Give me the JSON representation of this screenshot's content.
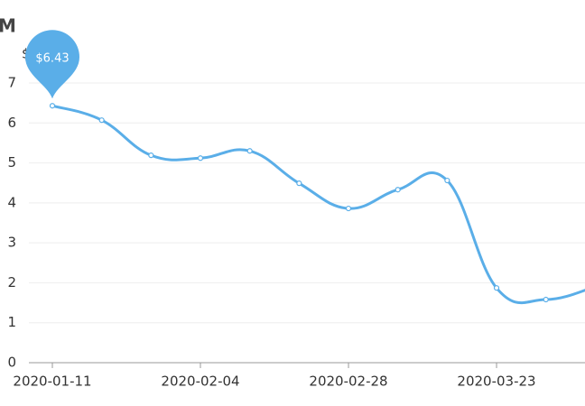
{
  "chart_data": {
    "type": "line",
    "title": "M",
    "y_label": "$",
    "categories": [
      "2020-01-11",
      null,
      null,
      "2020-02-04",
      null,
      null,
      "2020-02-28",
      null,
      null,
      "2020-03-23",
      null,
      null
    ],
    "series": [
      {
        "name": "$M",
        "color": "#5aaee8",
        "values": [
          6.43,
          6.07,
          5.19,
          5.12,
          5.3,
          4.49,
          3.86,
          4.33,
          4.56,
          1.87,
          1.58,
          1.9
        ],
        "value_labels": [
          "$6.43",
          null,
          null,
          null,
          null,
          null,
          null,
          null,
          null,
          null,
          null,
          null
        ]
      }
    ],
    "ylim": [
      0,
      7
    ],
    "yticks": [
      0,
      1,
      2,
      3,
      4,
      5,
      6,
      7
    ],
    "grid": true
  }
}
